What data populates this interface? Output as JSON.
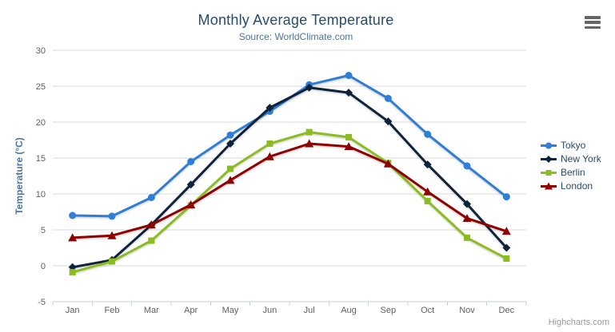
{
  "chart_data": {
    "type": "line",
    "title": "Monthly Average Temperature",
    "subtitle": "Source: WorldClimate.com",
    "xlabel": "",
    "ylabel": "Temperature (°C)",
    "ylim": [
      -5,
      30
    ],
    "yticks": [
      -5,
      0,
      5,
      10,
      15,
      20,
      25,
      30
    ],
    "grid": true,
    "legend_position": "right",
    "categories": [
      "Jan",
      "Feb",
      "Mar",
      "Apr",
      "May",
      "Jun",
      "Jul",
      "Aug",
      "Sep",
      "Oct",
      "Nov",
      "Dec"
    ],
    "series": [
      {
        "name": "Tokyo",
        "color": "#2f7ed8",
        "marker": "circle",
        "values": [
          7.0,
          6.9,
          9.5,
          14.5,
          18.2,
          21.5,
          25.2,
          26.5,
          23.3,
          18.3,
          13.9,
          9.6
        ]
      },
      {
        "name": "New York",
        "color": "#0d233a",
        "marker": "diamond",
        "values": [
          -0.2,
          0.8,
          5.7,
          11.3,
          17.0,
          22.0,
          24.8,
          24.1,
          20.1,
          14.1,
          8.6,
          2.5
        ]
      },
      {
        "name": "Berlin",
        "color": "#8bbc21",
        "marker": "square",
        "values": [
          -0.9,
          0.6,
          3.5,
          8.4,
          13.5,
          17.0,
          18.6,
          17.9,
          14.3,
          9.0,
          3.9,
          1.0
        ]
      },
      {
        "name": "London",
        "color": "#910000",
        "marker": "triangle",
        "values": [
          3.9,
          4.2,
          5.7,
          8.5,
          11.9,
          15.2,
          17.0,
          16.6,
          14.2,
          10.3,
          6.6,
          4.8
        ]
      }
    ]
  },
  "colors": {
    "title": "#274b6d",
    "subtitle": "#4d759e",
    "axis_label": "#606060",
    "axis_title": "#4d759e",
    "grid_line": "#d8d8d8",
    "axis_line": "#c0d0e0",
    "legend_text": "#274b6d",
    "credits_text": "#999999",
    "menu_icon": "#666666"
  },
  "export_menu": {
    "icon": "hamburger-icon"
  },
  "credits": {
    "label": "Highcharts.com"
  }
}
